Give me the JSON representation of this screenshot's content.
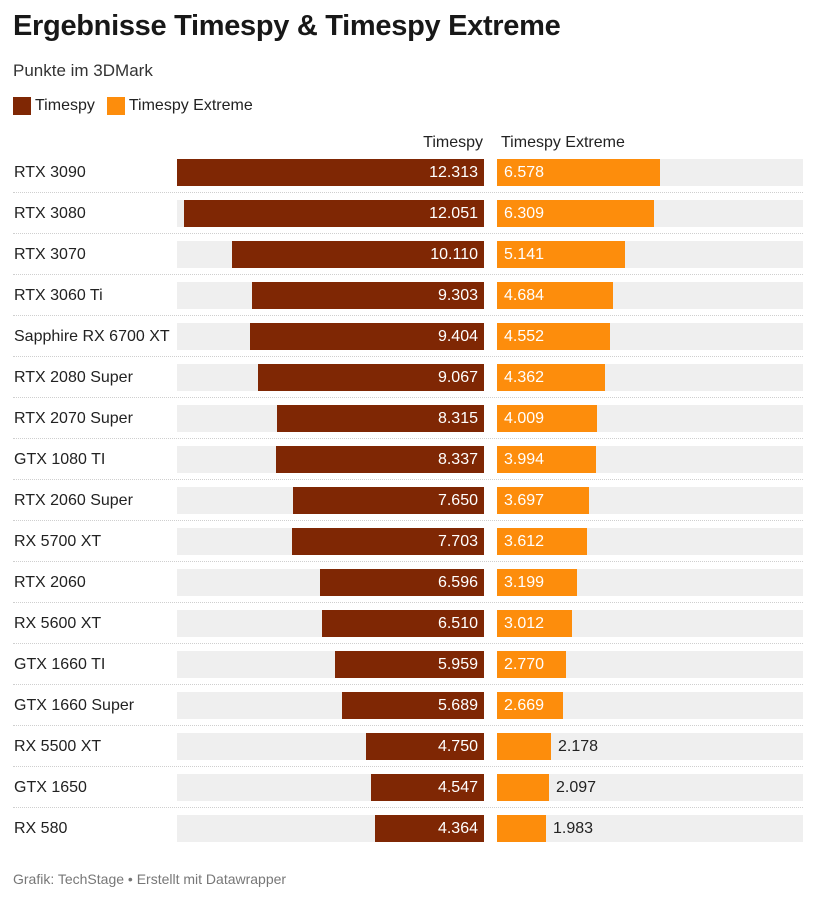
{
  "title": "Ergebnisse Timespy & Timespy Extreme",
  "subtitle": "Punkte im 3DMark",
  "legend": [
    {
      "label": "Timespy",
      "color": "#7f2704"
    },
    {
      "label": "Timespy Extreme",
      "color": "#fd8d0c"
    }
  ],
  "column_headers": [
    "Timespy",
    "Timespy Extreme"
  ],
  "footer": "Grafik: TechStage • Erstellt mit Datawrapper",
  "chart_data": {
    "type": "bar",
    "orientation": "horizontal",
    "title": "Ergebnisse Timespy & Timespy Extreme",
    "subtitle": "Punkte im 3DMark",
    "categories": [
      "RTX 3090",
      "RTX 3080",
      "RTX 3070",
      "RTX 3060 Ti",
      "Sapphire RX 6700 XT",
      "RTX 2080 Super",
      "RTX 2070 Super",
      "GTX 1080 TI",
      "RTX 2060 Super",
      "RX 5700 XT",
      "RTX 2060",
      "RX 5600 XT",
      "GTX 1660 TI",
      "GTX 1660 Super",
      "RX 5500 XT",
      "GTX 1650",
      "RX 580"
    ],
    "series": [
      {
        "name": "Timespy",
        "color": "#7f2704",
        "values": [
          12313,
          12051,
          10110,
          9303,
          9404,
          9067,
          8315,
          8337,
          7650,
          7703,
          6596,
          6510,
          5959,
          5689,
          4750,
          4547,
          4364
        ],
        "labels": [
          "12.313",
          "12.051",
          "10.110",
          "9.303",
          "9.404",
          "9.067",
          "8.315",
          "8.337",
          "7.650",
          "7.703",
          "6.596",
          "6.510",
          "5.959",
          "5.689",
          "4.750",
          "4.547",
          "4.364"
        ]
      },
      {
        "name": "Timespy Extreme",
        "color": "#fd8d0c",
        "values": [
          6578,
          6309,
          5141,
          4684,
          4552,
          4362,
          4009,
          3994,
          3697,
          3612,
          3199,
          3012,
          2770,
          2669,
          2178,
          2097,
          1983
        ],
        "labels": [
          "6.578",
          "6.309",
          "5.141",
          "4.684",
          "4.552",
          "4.362",
          "4.009",
          "3.994",
          "3.697",
          "3.612",
          "3.199",
          "3.012",
          "2.770",
          "2.669",
          "2.178",
          "2.097",
          "1.983"
        ]
      }
    ],
    "xlim": [
      [
        0,
        12313
      ],
      [
        0,
        12313
      ]
    ],
    "legend_position": "top-left",
    "grid": false
  }
}
